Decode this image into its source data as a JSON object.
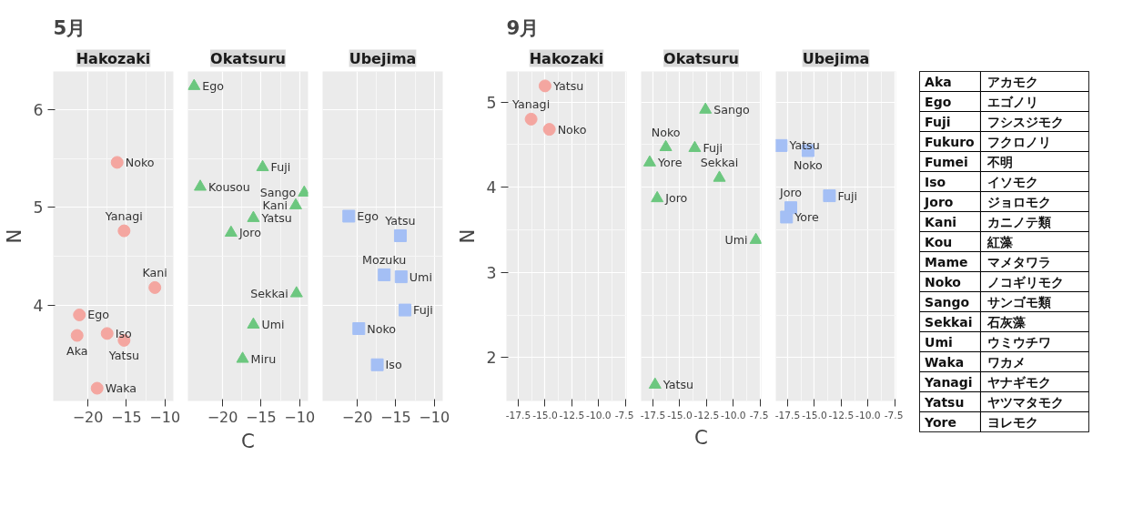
{
  "chart_data": [
    {
      "type": "scatter",
      "title": "5月",
      "subtitle": "Hakozaki",
      "ylabel": "N",
      "color": "#f4a6a0",
      "marker": "circle",
      "grid": true,
      "x": [
        -16.2,
        -15.3,
        -11.3,
        -21.1,
        -21.4,
        -17.5,
        -15.3,
        -18.8
      ],
      "values": [
        5.46,
        4.76,
        4.18,
        3.9,
        3.69,
        3.71,
        3.64,
        3.15
      ],
      "xlim": [
        -24.5,
        -8.9
      ],
      "ylim": [
        3.02,
        6.39
      ],
      "xticks": [
        -20,
        -15,
        -10
      ],
      "yticks": [
        4,
        5,
        6
      ],
      "annotations": [
        {
          "text": "Noko",
          "x": -16.2,
          "y": 5.46
        },
        {
          "text": "Yanagi",
          "x": -15.3,
          "y": 4.76
        },
        {
          "text": "Kani",
          "x": -11.3,
          "y": 4.18
        },
        {
          "text": "Ego",
          "x": -21.1,
          "y": 3.9
        },
        {
          "text": "Aka",
          "x": -21.4,
          "y": 3.69
        },
        {
          "text": "Iso",
          "x": -17.5,
          "y": 3.71
        },
        {
          "text": "Yatsu",
          "x": -15.3,
          "y": 3.64
        },
        {
          "text": "Waka",
          "x": -18.8,
          "y": 3.15
        }
      ]
    },
    {
      "type": "scatter",
      "subtitle": "Okatsuru",
      "xlabel": "C",
      "color": "#6cc77f",
      "marker": "triangle",
      "grid": true,
      "tick_labels": "x",
      "x": [
        -23.7,
        -22.9,
        -14.8,
        -9.4,
        -10.5,
        -16.0,
        -18.9,
        -10.4,
        -16.0,
        -17.4
      ],
      "values": [
        6.24,
        5.21,
        5.41,
        5.15,
        5.02,
        4.89,
        4.74,
        4.12,
        3.8,
        3.45
      ],
      "xlim": [
        -24.5,
        -8.9
      ],
      "ylim": [
        3.02,
        6.39
      ],
      "xticks": [
        -20,
        -15,
        -10
      ],
      "yticks": [
        4,
        5,
        6
      ],
      "annotations": [
        {
          "text": "Ego",
          "x": -23.7,
          "y": 6.24
        },
        {
          "text": "Kousou",
          "x": -22.9,
          "y": 5.21
        },
        {
          "text": "Fuji",
          "x": -14.8,
          "y": 5.41
        },
        {
          "text": "Sango",
          "x": -9.4,
          "y": 5.15
        },
        {
          "text": "Kani",
          "x": -10.5,
          "y": 5.02
        },
        {
          "text": "Yatsu",
          "x": -16.0,
          "y": 4.89
        },
        {
          "text": "Joro",
          "x": -18.9,
          "y": 4.74
        },
        {
          "text": "Sekkai",
          "x": -10.4,
          "y": 4.12
        },
        {
          "text": "Umi",
          "x": -16.0,
          "y": 3.8
        },
        {
          "text": "Miru",
          "x": -17.4,
          "y": 3.45
        }
      ]
    },
    {
      "type": "scatter",
      "subtitle": "Ubejima",
      "color": "#a4bff5",
      "marker": "square",
      "grid": true,
      "tick_labels": "x",
      "x": [
        -21.1,
        -14.4,
        -16.5,
        -14.3,
        -13.8,
        -19.8,
        -17.4
      ],
      "values": [
        4.91,
        4.71,
        4.31,
        4.29,
        3.95,
        3.76,
        3.39
      ],
      "xlim": [
        -24.5,
        -8.9
      ],
      "ylim": [
        3.02,
        6.39
      ],
      "xticks": [
        -20,
        -15,
        -10
      ],
      "yticks": [
        4,
        5,
        6
      ],
      "annotations": [
        {
          "text": "Ego",
          "x": -21.1,
          "y": 4.91
        },
        {
          "text": "Yatsu",
          "x": -14.4,
          "y": 4.71
        },
        {
          "text": "Mozuku",
          "x": -16.5,
          "y": 4.31
        },
        {
          "text": "Umi",
          "x": -14.3,
          "y": 4.29
        },
        {
          "text": "Fuji",
          "x": -13.8,
          "y": 3.95
        },
        {
          "text": "Noko",
          "x": -19.8,
          "y": 3.76
        },
        {
          "text": "Iso",
          "x": -17.4,
          "y": 3.39
        }
      ]
    },
    {
      "type": "scatter",
      "title": "9月",
      "subtitle": "Hakozaki",
      "ylabel": "N",
      "color": "#f4a6a0",
      "marker": "circle",
      "grid": true,
      "x": [
        -15.0,
        -16.3,
        -14.6
      ],
      "values": [
        5.19,
        4.8,
        4.68
      ],
      "xlim": [
        -18.6,
        -7.4
      ],
      "ylim": [
        1.49,
        5.36
      ],
      "xticks": [
        {
          "value": -17.5,
          "label": "-17.5"
        },
        {
          "value": -15,
          "label": "-15.0"
        },
        {
          "value": -12.5,
          "label": "-12.5"
        },
        {
          "value": -10,
          "label": "-10.0"
        },
        {
          "value": -7.5,
          "label": "-7.5"
        }
      ],
      "yticks": [
        2,
        3,
        4,
        5
      ],
      "annotations": [
        {
          "text": "Yatsu",
          "x": -15.0,
          "y": 5.19
        },
        {
          "text": "Yanagi",
          "x": -16.3,
          "y": 4.8
        },
        {
          "text": "Noko",
          "x": -14.6,
          "y": 4.68
        }
      ]
    },
    {
      "type": "scatter",
      "subtitle": "Okatsuru",
      "xlabel": "C",
      "color": "#6cc77f",
      "marker": "triangle",
      "grid": true,
      "tick_labels": "x",
      "x": [
        -12.6,
        -16.3,
        -13.6,
        -17.8,
        -11.3,
        -17.1,
        -7.9,
        -17.3
      ],
      "values": [
        4.91,
        4.47,
        4.46,
        4.29,
        4.11,
        3.87,
        3.38,
        1.68
      ],
      "xlim": [
        -18.6,
        -7.4
      ],
      "ylim": [
        1.49,
        5.36
      ],
      "xticks": [
        {
          "value": -17.5,
          "label": "-17.5"
        },
        {
          "value": -15,
          "label": "-15.0"
        },
        {
          "value": -12.5,
          "label": "-12.5"
        },
        {
          "value": -10,
          "label": "-10.0"
        },
        {
          "value": -7.5,
          "label": "-7.5"
        }
      ],
      "yticks": [
        2,
        3,
        4,
        5
      ],
      "annotations": [
        {
          "text": "Sango",
          "x": -12.6,
          "y": 4.91
        },
        {
          "text": "Noko",
          "x": -16.3,
          "y": 4.47
        },
        {
          "text": "Fuji",
          "x": -13.6,
          "y": 4.46
        },
        {
          "text": "Yore",
          "x": -17.8,
          "y": 4.29
        },
        {
          "text": "Sekkai",
          "x": -11.3,
          "y": 4.11
        },
        {
          "text": "Joro",
          "x": -17.1,
          "y": 3.87
        },
        {
          "text": "Umi",
          "x": -7.9,
          "y": 3.38
        },
        {
          "text": "Yatsu",
          "x": -17.3,
          "y": 1.68
        }
      ]
    },
    {
      "type": "scatter",
      "subtitle": "Ubejima",
      "color": "#a4bff5",
      "marker": "square",
      "grid": true,
      "tick_labels": "x",
      "x": [
        -18.1,
        -15.6,
        -13.6,
        -17.2,
        -17.6
      ],
      "values": [
        4.49,
        4.43,
        3.9,
        3.76,
        3.65
      ],
      "xlim": [
        -18.6,
        -7.4
      ],
      "ylim": [
        1.49,
        5.36
      ],
      "xticks": [
        {
          "value": -17.5,
          "label": "-17.5"
        },
        {
          "value": -15,
          "label": "-15.0"
        },
        {
          "value": -12.5,
          "label": "-12.5"
        },
        {
          "value": -10,
          "label": "-10.0"
        },
        {
          "value": -7.5,
          "label": "-7.5"
        }
      ],
      "yticks": [
        2,
        3,
        4,
        5
      ],
      "annotations": [
        {
          "text": "Yatsu",
          "x": -18.1,
          "y": 4.49
        },
        {
          "text": "Noko",
          "x": -15.6,
          "y": 4.43
        },
        {
          "text": "Fuji",
          "x": -13.6,
          "y": 3.9
        },
        {
          "text": "Joro",
          "x": -17.2,
          "y": 3.76
        },
        {
          "text": "Yore",
          "x": -17.6,
          "y": 3.65
        }
      ]
    },
    {
      "type": "other",
      "cell_labels": [
        [
          "Aka",
          "アカモク"
        ],
        [
          "Ego",
          "エゴノリ"
        ],
        [
          "Fuji",
          "フシスジモク"
        ],
        [
          "Fukuro",
          "フクロノリ"
        ],
        [
          "Fumei",
          "不明"
        ],
        [
          "Iso",
          "イソモク"
        ],
        [
          "Joro",
          "ジョロモク"
        ],
        [
          "Kani",
          "カニノテ類"
        ],
        [
          "Kou",
          "紅藻"
        ],
        [
          "Mame",
          "マメタワラ"
        ],
        [
          "Noko",
          "ノコギリモク"
        ],
        [
          "Sango",
          "サンゴモ類"
        ],
        [
          "Sekkai",
          "石灰藻"
        ],
        [
          "Umi",
          "ウミウチワ"
        ],
        [
          "Waka",
          "ワカメ"
        ],
        [
          "Yanagi",
          "ヤナギモク"
        ],
        [
          "Yatsu",
          "ヤツマタモク"
        ],
        [
          "Yore",
          "ヨレモク"
        ]
      ]
    }
  ]
}
